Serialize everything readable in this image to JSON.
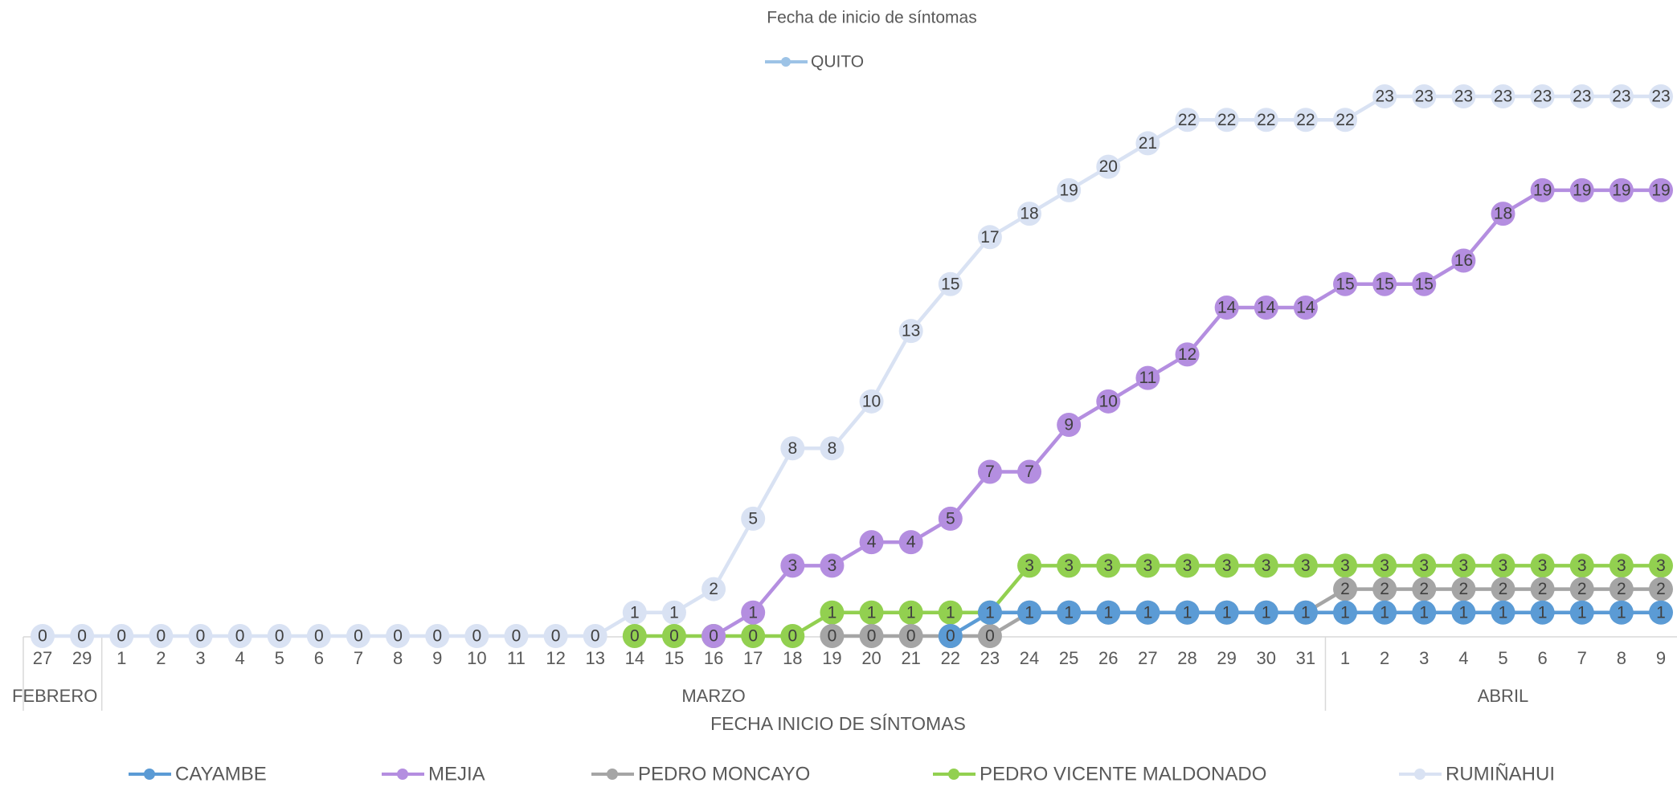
{
  "chart_data": {
    "type": "line",
    "title": "Fecha de inicio de síntomas",
    "top_legend": {
      "name": "QUITO",
      "color": "#9dc3e6"
    },
    "x_label": "FECHA INICIO DE SÍNTOMAS",
    "groups": [
      {
        "label": "FEBRERO",
        "categories": [
          "27",
          "29"
        ]
      },
      {
        "label": "MARZO",
        "categories": [
          "1",
          "2",
          "3",
          "4",
          "5",
          "6",
          "7",
          "8",
          "9",
          "10",
          "11",
          "12",
          "13",
          "14",
          "15",
          "16",
          "17",
          "18",
          "19",
          "20",
          "21",
          "22",
          "23",
          "24",
          "25",
          "26",
          "27",
          "28",
          "29",
          "30",
          "31"
        ]
      },
      {
        "label": "ABRIL",
        "categories": [
          "1",
          "2",
          "3",
          "4",
          "5",
          "6",
          "7",
          "8",
          "9"
        ]
      }
    ],
    "ylim": [
      0,
      23
    ],
    "series": [
      {
        "name": "CAYAMBE",
        "color": "#5b9bd5",
        "values": [
          null,
          null,
          null,
          null,
          null,
          null,
          null,
          null,
          null,
          null,
          null,
          null,
          null,
          null,
          null,
          null,
          null,
          null,
          null,
          null,
          null,
          null,
          null,
          0,
          1,
          1,
          1,
          1,
          1,
          1,
          1,
          1,
          1,
          1,
          1,
          1,
          1,
          1,
          1,
          1,
          1,
          1
        ]
      },
      {
        "name": "MEJIA",
        "color": "#b48ee0",
        "values": [
          null,
          null,
          null,
          null,
          null,
          null,
          null,
          null,
          null,
          null,
          null,
          null,
          null,
          null,
          null,
          null,
          null,
          0,
          1,
          3,
          3,
          4,
          4,
          5,
          7,
          7,
          9,
          10,
          11,
          12,
          14,
          14,
          14,
          15,
          15,
          15,
          16,
          18,
          19,
          19,
          19,
          19
        ]
      },
      {
        "name": "PEDRO MONCAYO",
        "color": "#a5a5a5",
        "values": [
          null,
          null,
          null,
          null,
          null,
          null,
          null,
          null,
          null,
          null,
          null,
          null,
          null,
          null,
          null,
          null,
          null,
          null,
          null,
          null,
          0,
          0,
          0,
          0,
          0,
          1,
          1,
          1,
          1,
          1,
          1,
          1,
          1,
          2,
          2,
          2,
          2,
          2,
          2,
          2,
          2,
          2
        ]
      },
      {
        "name": "PEDRO VICENTE MALDONADO",
        "color": "#92d050",
        "values": [
          null,
          null,
          null,
          null,
          null,
          null,
          null,
          null,
          null,
          null,
          null,
          null,
          null,
          null,
          null,
          0,
          0,
          0,
          0,
          0,
          1,
          1,
          1,
          1,
          1,
          3,
          3,
          3,
          3,
          3,
          3,
          3,
          3,
          3,
          3,
          3,
          3,
          3,
          3,
          3,
          3,
          3
        ]
      },
      {
        "name": "RUMIÑAHUI",
        "color": "#d9e2f3",
        "values": [
          0,
          0,
          0,
          0,
          0,
          0,
          0,
          0,
          0,
          0,
          0,
          0,
          0,
          0,
          0,
          1,
          1,
          2,
          5,
          8,
          8,
          10,
          13,
          15,
          17,
          18,
          19,
          20,
          21,
          22,
          22,
          22,
          22,
          22,
          23,
          23,
          23,
          23,
          23,
          23,
          23,
          23
        ]
      }
    ]
  }
}
